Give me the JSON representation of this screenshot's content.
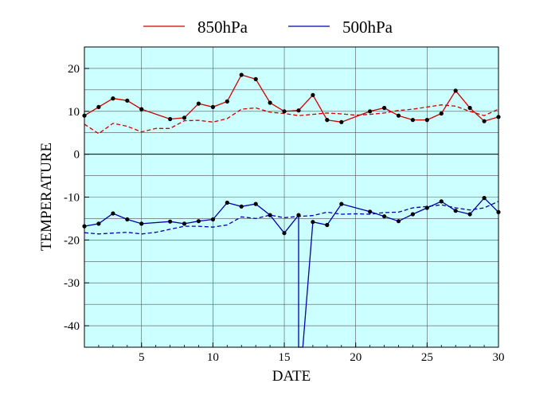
{
  "chart_data": {
    "type": "line",
    "xlabel": "DATE",
    "ylabel": "TEMPERATURE",
    "xlim": [
      1,
      30
    ],
    "ylim": [
      -45,
      25
    ],
    "x_ticks": [
      5,
      10,
      15,
      20,
      25,
      30
    ],
    "y_ticks": [
      20,
      10,
      0,
      -10,
      -20,
      -30,
      -40
    ],
    "grid": true,
    "plot_background": "#ccffff",
    "legend_position": "top",
    "legend": [
      {
        "label": "850hPa",
        "color": "#cc0000"
      },
      {
        "label": "500hPa",
        "color": "#0000aa"
      }
    ],
    "series": [
      {
        "name": "850hPa",
        "color": "#cc0000",
        "style": "solid",
        "markers": true,
        "points": [
          [
            1,
            9
          ],
          [
            2,
            11
          ],
          [
            3,
            13
          ],
          [
            4,
            12.5
          ],
          [
            5,
            10.5
          ],
          [
            7,
            8.2
          ],
          [
            8,
            8.5
          ],
          [
            9,
            11.8
          ],
          [
            10,
            11
          ],
          [
            11,
            12.3
          ],
          [
            12,
            18.5
          ],
          [
            13,
            17.5
          ],
          [
            14,
            12
          ],
          [
            15,
            10
          ],
          [
            16,
            10.2
          ],
          [
            17,
            13.8
          ],
          [
            18,
            8
          ],
          [
            19,
            7.5
          ],
          [
            21,
            10
          ],
          [
            22,
            10.8
          ],
          [
            23,
            9
          ],
          [
            24,
            8
          ],
          [
            25,
            8
          ],
          [
            26,
            9.5
          ],
          [
            27,
            14.8
          ],
          [
            28,
            10.8
          ],
          [
            29,
            7.7
          ],
          [
            30,
            8.7
          ]
        ]
      },
      {
        "name": "850hPa normal",
        "color": "#cc0000",
        "style": "dashed",
        "markers": false,
        "points": [
          [
            1,
            7
          ],
          [
            2,
            4.8
          ],
          [
            3,
            7.2
          ],
          [
            4,
            6.5
          ],
          [
            5,
            5.2
          ],
          [
            6,
            6
          ],
          [
            7,
            6
          ],
          [
            8,
            7.8
          ],
          [
            9,
            7.9
          ],
          [
            10,
            7.5
          ],
          [
            11,
            8.3
          ],
          [
            12,
            10.5
          ],
          [
            13,
            10.8
          ],
          [
            14,
            9.8
          ],
          [
            15,
            9.5
          ],
          [
            16,
            9
          ],
          [
            17,
            9.3
          ],
          [
            18,
            9.6
          ],
          [
            19,
            9.4
          ],
          [
            20,
            9.1
          ],
          [
            21,
            9.3
          ],
          [
            22,
            9.6
          ],
          [
            23,
            10.2
          ],
          [
            24,
            10.5
          ],
          [
            25,
            11
          ],
          [
            26,
            11.5
          ],
          [
            27,
            11.2
          ],
          [
            28,
            10
          ],
          [
            29,
            9
          ],
          [
            30,
            10.5
          ]
        ]
      },
      {
        "name": "500hPa",
        "color": "#0000aa",
        "style": "solid",
        "markers": true,
        "points": [
          [
            1,
            -16.8
          ],
          [
            2,
            -16.2
          ],
          [
            3,
            -13.8
          ],
          [
            4,
            -15.2
          ],
          [
            5,
            -16.2
          ],
          [
            7,
            -15.7
          ],
          [
            8,
            -16.2
          ],
          [
            9,
            -15.6
          ],
          [
            10,
            -15.2
          ],
          [
            11,
            -11.3
          ],
          [
            12,
            -12.2
          ],
          [
            13,
            -11.6
          ],
          [
            14,
            -14.2
          ],
          [
            15,
            -18.4
          ],
          [
            16,
            -14.2
          ],
          [
            16,
            -45
          ],
          [
            16.3,
            -45
          ],
          [
            17,
            -15.8
          ],
          [
            18,
            -16.5
          ],
          [
            19,
            -11.6
          ],
          [
            21,
            -13.4
          ],
          [
            22,
            -14.5
          ],
          [
            23,
            -15.6
          ],
          [
            24,
            -14
          ],
          [
            25,
            -12.5
          ],
          [
            26,
            -11
          ],
          [
            27,
            -13.2
          ],
          [
            28,
            -14
          ],
          [
            29,
            -10.2
          ],
          [
            30,
            -13.5
          ]
        ]
      },
      {
        "name": "500hPa normal",
        "color": "#0000aa",
        "style": "dashed",
        "markers": false,
        "points": [
          [
            1,
            -18.3
          ],
          [
            2,
            -18.6
          ],
          [
            3,
            -18.4
          ],
          [
            4,
            -18.2
          ],
          [
            5,
            -18.6
          ],
          [
            6,
            -18.2
          ],
          [
            7,
            -17.5
          ],
          [
            8,
            -16.8
          ],
          [
            9,
            -16.8
          ],
          [
            10,
            -17
          ],
          [
            11,
            -16.5
          ],
          [
            12,
            -14.6
          ],
          [
            13,
            -15
          ],
          [
            14,
            -14.2
          ],
          [
            15,
            -14.8
          ],
          [
            16,
            -14.5
          ],
          [
            17,
            -14.3
          ],
          [
            18,
            -13.5
          ],
          [
            19,
            -14
          ],
          [
            20,
            -13.9
          ],
          [
            21,
            -14
          ],
          [
            22,
            -13.6
          ],
          [
            23,
            -13.5
          ],
          [
            24,
            -12.5
          ],
          [
            25,
            -12.2
          ],
          [
            26,
            -11.8
          ],
          [
            27,
            -12.5
          ],
          [
            28,
            -13
          ],
          [
            29,
            -12.5
          ],
          [
            30,
            -11
          ]
        ]
      }
    ]
  }
}
